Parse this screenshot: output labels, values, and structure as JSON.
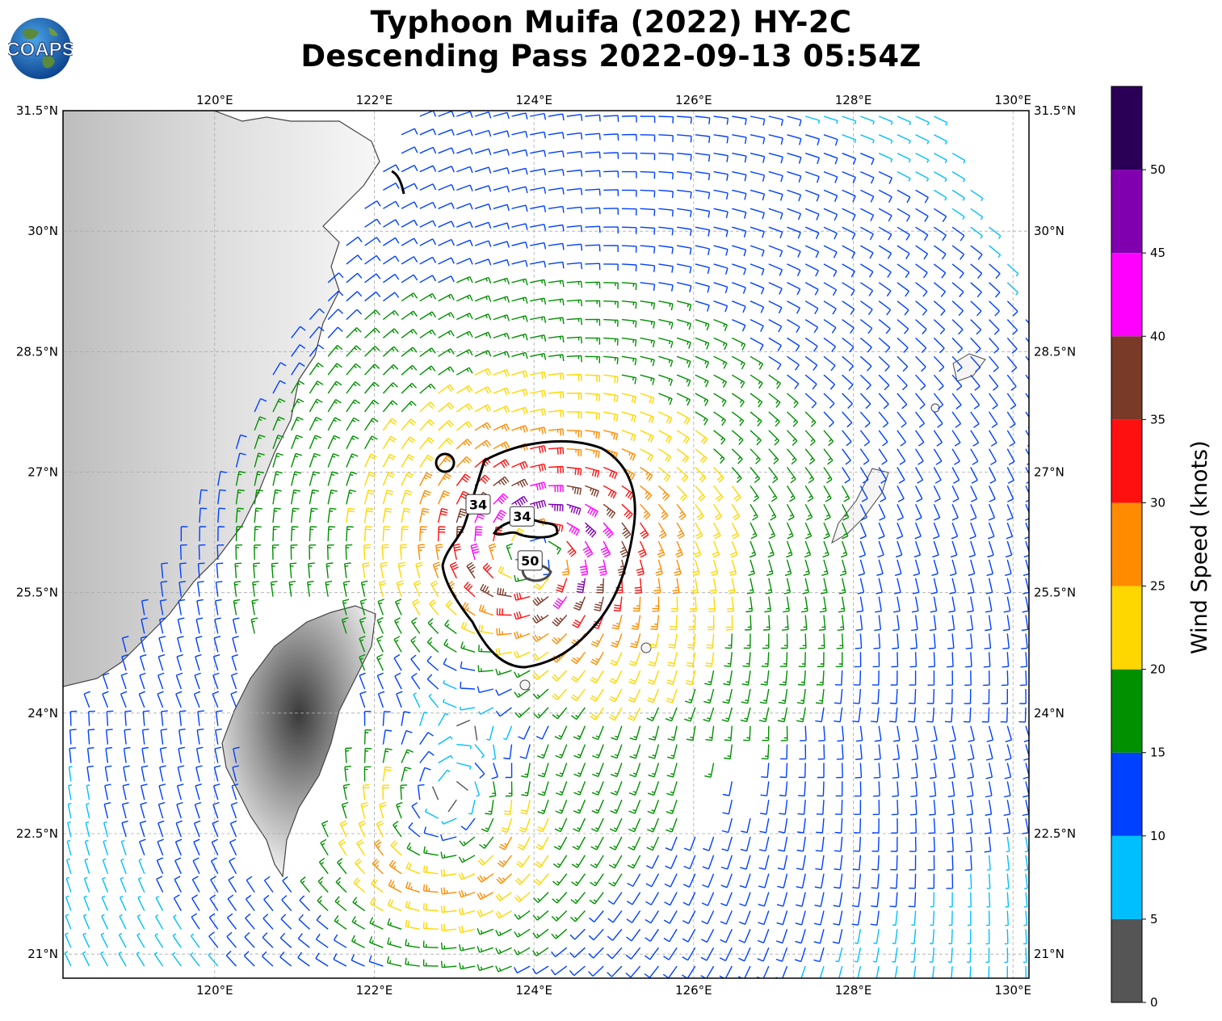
{
  "title": {
    "line1": "Typhoon Muifa (2022) HY-2C",
    "line2": "Descending Pass 2022-09-13 05:54Z"
  },
  "logo": {
    "text": "COAPS",
    "icon": "globe-logo-icon"
  },
  "map": {
    "lon_range": [
      118.1,
      130.2
    ],
    "lat_range": [
      20.7,
      31.5
    ],
    "lon_ticks": [
      "120°E",
      "122°E",
      "124°E",
      "126°E",
      "128°E",
      "130°E"
    ],
    "lon_tick_values": [
      120,
      122,
      124,
      126,
      128,
      130
    ],
    "lat_ticks": [
      "31.5°N",
      "30°N",
      "28.5°N",
      "27°N",
      "25.5°N",
      "24°N",
      "22.5°N",
      "21°N"
    ],
    "lat_tick_values": [
      31.5,
      30,
      28.5,
      27,
      25.5,
      24,
      22.5,
      21
    ],
    "grid": true,
    "storm_center": {
      "lon": 124.0,
      "lat": 26.0
    },
    "secondary_circulation": {
      "lon": 122.9,
      "lat": 22.6
    },
    "contours": [
      {
        "label": "34",
        "label_lon": 123.3,
        "label_lat": 26.6
      },
      {
        "label": "34",
        "label_lon": 123.85,
        "label_lat": 26.45
      },
      {
        "label": "50",
        "label_lon": 123.95,
        "label_lat": 25.9
      }
    ]
  },
  "colorbar": {
    "label": "Wind Speed (knots)",
    "ticks": [
      "0",
      "5",
      "10",
      "15",
      "20",
      "25",
      "30",
      "35",
      "40",
      "45",
      "50"
    ],
    "bins": [
      0,
      5,
      10,
      15,
      20,
      25,
      30,
      35,
      40,
      45,
      50,
      55
    ],
    "colors": [
      "#555555",
      "#00bfff",
      "#0040ff",
      "#009000",
      "#ffd700",
      "#ff8c00",
      "#ff1010",
      "#7a3a28",
      "#ff00ff",
      "#8000b0",
      "#2a0057"
    ]
  }
}
